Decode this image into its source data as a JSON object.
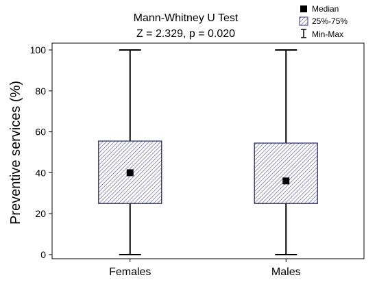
{
  "chart_data": {
    "type": "box",
    "title": "Mann-Whitney U Test",
    "subtitle": "Z = 2.329,  p = 0.020",
    "ylabel": "Preventive services (%)",
    "xlabel": "",
    "ylim": [
      0,
      100
    ],
    "y_ticks": [
      0,
      20,
      40,
      60,
      80,
      100
    ],
    "categories": [
      "Females",
      "Males"
    ],
    "groups": [
      {
        "category": "Females",
        "min": 0,
        "q1": 25,
        "median": 40,
        "q3": 55.5,
        "max": 100
      },
      {
        "category": "Males",
        "min": 0,
        "q1": 25,
        "median": 36,
        "q3": 54.5,
        "max": 100
      }
    ],
    "legend": {
      "placement": "top-right",
      "entries": [
        {
          "symbol": "square",
          "label": "Median"
        },
        {
          "symbol": "hatched-box",
          "label": "25%-75%"
        },
        {
          "symbol": "whisker",
          "label": "Min-Max"
        }
      ]
    },
    "grid": false,
    "colors": {
      "box_stroke": "#2b2e8c",
      "hatch": "#4b4fa8",
      "box_fill": "#ffffff",
      "median": "#000000",
      "whisker": "#000000"
    }
  }
}
